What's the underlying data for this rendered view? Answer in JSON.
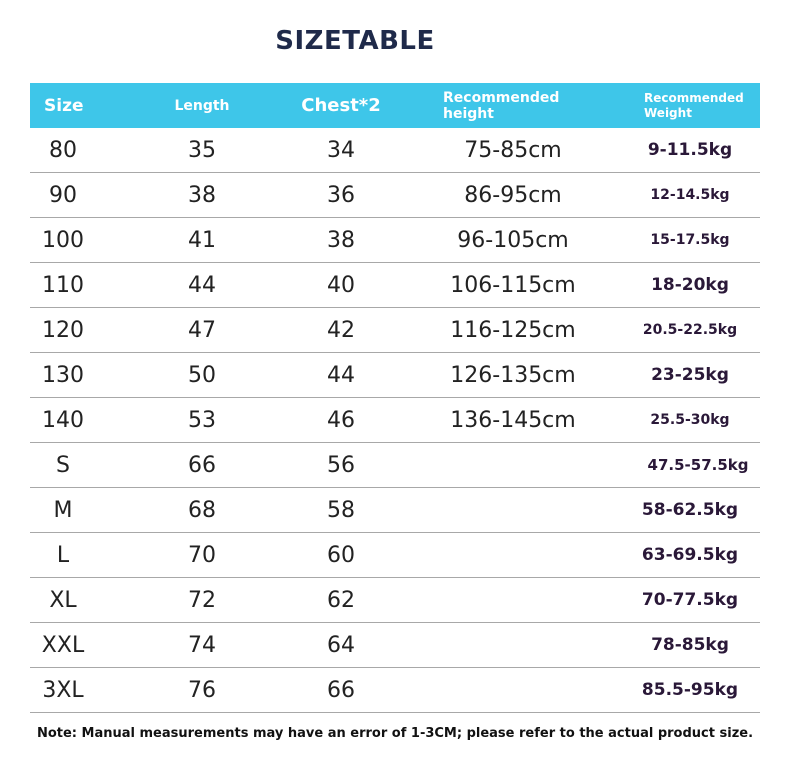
{
  "title": "SIZETABLE",
  "table": {
    "header": [
      "Size",
      "Length",
      "Chest*2",
      "Recommended height",
      "Recommended Weight"
    ],
    "rows": [
      [
        "80",
        "35",
        "34",
        "75-85cm",
        "9-11.5kg"
      ],
      [
        "90",
        "38",
        "36",
        "86-95cm",
        "12-14.5kg"
      ],
      [
        "100",
        "41",
        "38",
        "96-105cm",
        "15-17.5kg"
      ],
      [
        "110",
        "44",
        "40",
        "106-115cm",
        "18-20kg"
      ],
      [
        "120",
        "47",
        "42",
        "116-125cm",
        "20.5-22.5kg"
      ],
      [
        "130",
        "50",
        "44",
        "126-135cm",
        "23-25kg"
      ],
      [
        "140",
        "53",
        "46",
        "136-145cm",
        "25.5-30kg"
      ],
      [
        "S",
        "66",
        "56",
        null,
        "47.5-57.5kg"
      ],
      [
        "M",
        "68",
        "58",
        null,
        "58-62.5kg"
      ],
      [
        "L",
        "70",
        "60",
        null,
        "63-69.5kg"
      ],
      [
        "XL",
        "72",
        "62",
        null,
        "70-77.5kg"
      ],
      [
        "XXL",
        "74",
        "64",
        null,
        "78-85kg"
      ],
      [
        "3XL",
        "76",
        "66",
        null,
        "85.5-95kg"
      ]
    ]
  },
  "note": "Note: Manual measurements may have an error of 1-3CM; please refer to the actual product size."
}
